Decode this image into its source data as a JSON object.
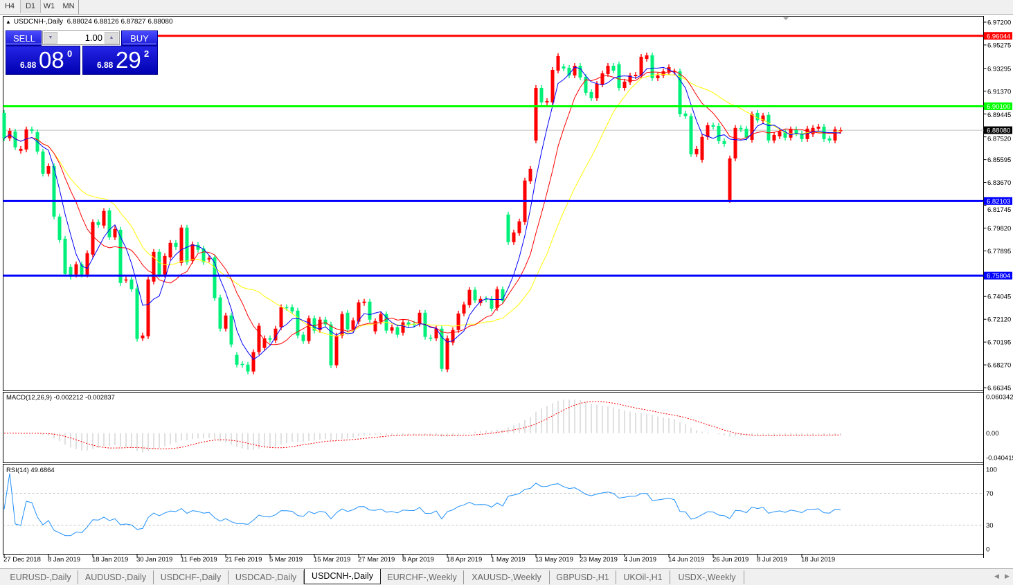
{
  "toolbar": {
    "timeframes": [
      "H4",
      "D1",
      "W1",
      "MN"
    ],
    "active": "D1"
  },
  "chart": {
    "title": "USDCNH-,Daily",
    "ohlc": "6.88024 6.88126 6.87827 6.88080"
  },
  "trade": {
    "sell_label": "SELL",
    "buy_label": "BUY",
    "lot": "1.00",
    "sell": {
      "prefix": "6.88",
      "big": "08",
      "sup": "0"
    },
    "buy": {
      "prefix": "6.88",
      "big": "29",
      "sup": "2"
    }
  },
  "tabs": [
    "EURUSD-,Daily",
    "AUDUSD-,Daily",
    "USDCHF-,Daily",
    "USDCAD-,Daily",
    "USDCNH-,Daily",
    "EURCHF-,Weekly",
    "XAUUSD-,Weekly",
    "GBPUSD-,H1",
    "UKOil-,H1",
    "USDX-,Weekly"
  ],
  "active_tab": "USDCNH-,Daily",
  "chart_data": {
    "type": "candlestick",
    "symbol": "USDCNH-",
    "timeframe": "Daily",
    "colors": {
      "bull": "#ff0000",
      "bear": "#00f07a",
      "ma_fast": "#0000ff",
      "ma_mid": "#ff0000",
      "ma_slow": "#ffff00",
      "rsi": "#1e90ff",
      "macd_hist": "#c0c0c0",
      "macd_signal": "#ff0000"
    },
    "open": [
      6.8955,
      6.8739,
      6.8797,
      6.8634,
      6.8645,
      6.8815,
      6.8791,
      6.8628,
      6.8441,
      6.8505,
      6.8079,
      6.7892,
      6.7653,
      6.7589,
      6.7676,
      6.7589,
      6.7758,
      6.8032,
      6.8003,
      6.8131,
      6.7904,
      6.7968,
      6.7542,
      6.7548,
      6.7472,
      6.7052,
      6.7069,
      6.753,
      6.7781,
      6.7589,
      6.7735,
      6.7857,
      6.7688,
      6.7986,
      6.7705,
      6.784,
      6.781,
      6.7717,
      6.7735,
      6.7396,
      6.7133,
      6.7244,
      6.6911,
      6.6835,
      6.6829,
      6.6771,
      6.6935,
      6.697,
      6.7052,
      6.7034,
      6.7145,
      6.7314,
      6.7314,
      6.7285,
      6.7081,
      6.7028,
      6.7221,
      6.7121,
      6.7209,
      6.7168,
      6.6824,
      6.7075,
      6.7267,
      6.7127,
      6.7192,
      6.7349,
      6.7361,
      6.711,
      6.7192,
      6.7256,
      6.7116,
      6.7145,
      6.7098,
      6.7186,
      6.7174,
      6.7174,
      6.7267,
      6.7057,
      6.7052,
      6.7133,
      6.6789,
      6.7016,
      6.7121,
      6.7261,
      6.7331,
      6.746,
      6.7349,
      6.7384,
      6.7384,
      6.7308,
      6.7466,
      6.8096,
      6.7863,
      6.7939,
      6.8032,
      6.8377,
      6.8721,
      6.9165,
      6.9043,
      6.9043,
      6.9311,
      6.9346,
      6.9335,
      6.927,
      6.9352,
      6.9259,
      6.913,
      6.9078,
      6.9194,
      6.9282,
      6.9352,
      6.9364,
      6.9165,
      6.9212,
      6.9264,
      6.927,
      6.941,
      6.944,
      6.9247,
      6.927,
      6.93,
      6.93,
      6.9305,
      6.8949,
      6.8926,
      6.8605,
      6.8558,
      6.8751,
      6.885,
      6.8844,
      6.8716,
      6.8219,
      6.857,
      6.8827,
      6.8821,
      6.8727,
      6.8955,
      6.8885,
      6.8938,
      6.8721,
      6.8756,
      6.8797,
      6.8745,
      6.8815,
      6.878,
      6.8733,
      6.8774,
      6.8821,
      6.8838,
      6.8739,
      6.8721,
      6.88024
    ],
    "close": [
      6.8739,
      6.8803,
      6.8663,
      6.8651,
      6.8815,
      6.8803,
      6.8628,
      6.8441,
      6.8505,
      6.8079,
      6.788,
      6.7595,
      6.7571,
      6.7676,
      6.7589,
      6.777,
      6.8032,
      6.8009,
      6.8126,
      6.7904,
      6.7974,
      6.7518,
      6.7548,
      6.7466,
      6.7046,
      6.7075,
      6.7548,
      6.7781,
      6.7589,
      6.7746,
      6.7857,
      6.7822,
      6.7986,
      6.7694,
      6.7845,
      6.7799,
      6.7694,
      6.7729,
      6.739,
      6.7133,
      6.7244,
      6.6999,
      6.6829,
      6.6827,
      6.6771,
      6.6935,
      6.7157,
      6.7052,
      6.704,
      6.7133,
      6.7314,
      6.7308,
      6.7279,
      6.7075,
      6.7028,
      6.7221,
      6.7116,
      6.7209,
      6.7168,
      6.6824,
      6.7075,
      6.7256,
      6.7127,
      6.7203,
      6.7355,
      6.7361,
      6.7209,
      6.7197,
      6.7256,
      6.7116,
      6.7145,
      6.7081,
      6.7186,
      6.7168,
      6.7165,
      6.7267,
      6.7063,
      6.7052,
      6.7133,
      6.6794,
      6.7052,
      6.7121,
      6.7261,
      6.7337,
      6.746,
      6.7372,
      6.7384,
      6.7378,
      6.7302,
      6.7466,
      6.7367,
      6.7863,
      6.7945,
      6.8038,
      6.8383,
      6.8482,
      6.9165,
      6.9043,
      6.9054,
      6.9317,
      6.9434,
      6.9329,
      6.927,
      6.9352,
      6.9253,
      6.9124,
      6.9078,
      6.92,
      6.9288,
      6.9352,
      6.9311,
      6.9165,
      6.9218,
      6.927,
      6.9276,
      6.9428,
      6.944,
      6.9247,
      6.927,
      6.9305,
      6.934,
      6.9305,
      6.8943,
      6.8926,
      6.8605,
      6.8651,
      6.8751,
      6.885,
      6.8838,
      6.8716,
      6.8692,
      6.857,
      6.8827,
      6.8815,
      6.8745,
      6.8943,
      6.8891,
      6.8932,
      6.8721,
      6.8768,
      6.8797,
      6.8745,
      6.8815,
      6.878,
      6.8733,
      6.8821,
      6.8827,
      6.8838,
      6.8733,
      6.8721,
      6.8815,
      6.8808
    ],
    "price_ticks": [
      "6.97200",
      "6.95275",
      "6.93295",
      "6.91370",
      "6.89445",
      "6.87520",
      "6.85595",
      "6.83670",
      "6.81745",
      "6.79820",
      "6.77895",
      "6.74045",
      "6.72120",
      "6.70195",
      "6.68270",
      "6.66345"
    ],
    "price_range": [
      6.66345,
      6.972
    ],
    "hlines": [
      {
        "value": "6.96044",
        "color": "#ff0000",
        "label_text": "#ffffff"
      },
      {
        "value": "6.90100",
        "color": "#00ff00",
        "label_text": "#ffffff"
      },
      {
        "value": "6.82103",
        "color": "#0000ff",
        "label_text": "#ffffff"
      },
      {
        "value": "6.75804",
        "color": "#0000ff",
        "label_text": "#ffffff"
      }
    ],
    "current_price": "6.88080",
    "x_labels": [
      "27 Dec 2018",
      "8 Jan 2019",
      "18 Jan 2019",
      "30 Jan 2019",
      "11 Feb 2019",
      "21 Feb 2019",
      "5 Mar 2019",
      "15 Mar 2019",
      "27 Mar 2019",
      "8 Apr 2019",
      "18 Apr 2019",
      "1 May 2019",
      "13 May 2019",
      "23 May 2019",
      "4 Jun 2019",
      "14 Jun 2019",
      "26 Jun 2019",
      "8 Jul 2019",
      "18 Jul 2019"
    ],
    "macd": {
      "label": "MACD(12,26,9) -0.002212 -0.002837",
      "axis_ticks": [
        "0.060342",
        "0.00",
        "-0.040415"
      ],
      "range": [
        -0.040415,
        0.060342
      ]
    },
    "rsi": {
      "label": "RSI(14) 49.6864",
      "axis_ticks": [
        "100",
        "70",
        "30",
        "0"
      ],
      "levels": [
        70,
        30
      ],
      "range": [
        0,
        100
      ]
    }
  }
}
